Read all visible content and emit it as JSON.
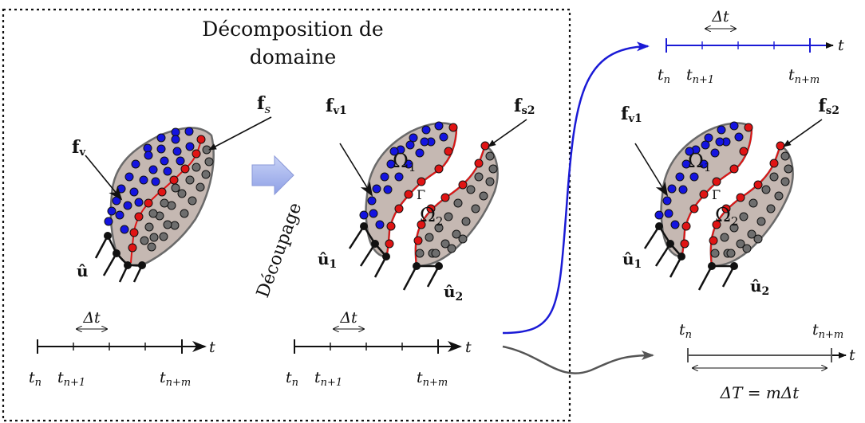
{
  "box_title_line1": "Décomposition de",
  "box_title_line2": "domaine",
  "arrow_caption": "Découpage",
  "labels": {
    "f_v": "f",
    "f_v_sub": "v",
    "f_s": "f",
    "f_s_sub": "s",
    "f_v1": "f",
    "f_v1_sub": "v",
    "f_v1_idx": "1",
    "f_s2": "f",
    "f_s2_sub": "s",
    "f_s2_idx": "2",
    "u_hat": "û",
    "u_hat1": "û",
    "u_hat1_idx": "1",
    "u_hat2": "û",
    "u_hat2_idx": "2",
    "omega1": "Ω",
    "omega1_idx": "1",
    "omega2": "Ω",
    "omega2_idx": "2",
    "gamma": "Γ"
  },
  "timeline": {
    "t": "t",
    "t_sub_n": "n",
    "t_sub_n1": "n+1",
    "t_sub_nm": "n+m",
    "dt": "Δt"
  },
  "coarse_step": "ΔT = mΔt",
  "colors": {
    "blue_node": "#1414e0",
    "red_node": "#e01414",
    "gray_node": "#6e6e6e",
    "domain_fill": "#c5b8b2",
    "interface": "#e01414",
    "fine_line": "#1a1ad6",
    "coarse_line": "#555555",
    "arrow_fill": "#a9b8ee"
  }
}
